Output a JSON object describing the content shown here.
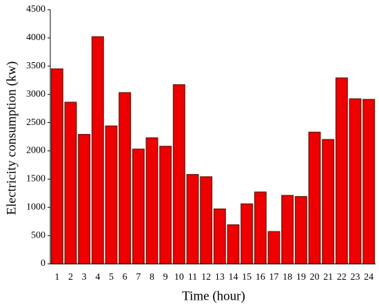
{
  "chart_data": {
    "type": "bar",
    "x_label": "Time (hour)",
    "y_label": "Electricity consumption (kw)",
    "categories": [
      "1",
      "2",
      "3",
      "4",
      "5",
      "6",
      "7",
      "8",
      "9",
      "10",
      "11",
      "12",
      "13",
      "14",
      "15",
      "16",
      "17",
      "18",
      "19",
      "20",
      "21",
      "22",
      "23",
      "24"
    ],
    "values": [
      3450,
      2860,
      2290,
      4020,
      2440,
      3030,
      2030,
      2230,
      2080,
      3170,
      1580,
      1540,
      970,
      690,
      1060,
      1270,
      570,
      1210,
      1190,
      2330,
      2200,
      3290,
      2920,
      2910
    ],
    "color": "#ee0000",
    "edge_color": "#7a1a10",
    "ylim": [
      0,
      4500
    ],
    "yticks": [
      0,
      500,
      1000,
      1500,
      2000,
      2500,
      3000,
      3500,
      4000,
      4500
    ]
  }
}
